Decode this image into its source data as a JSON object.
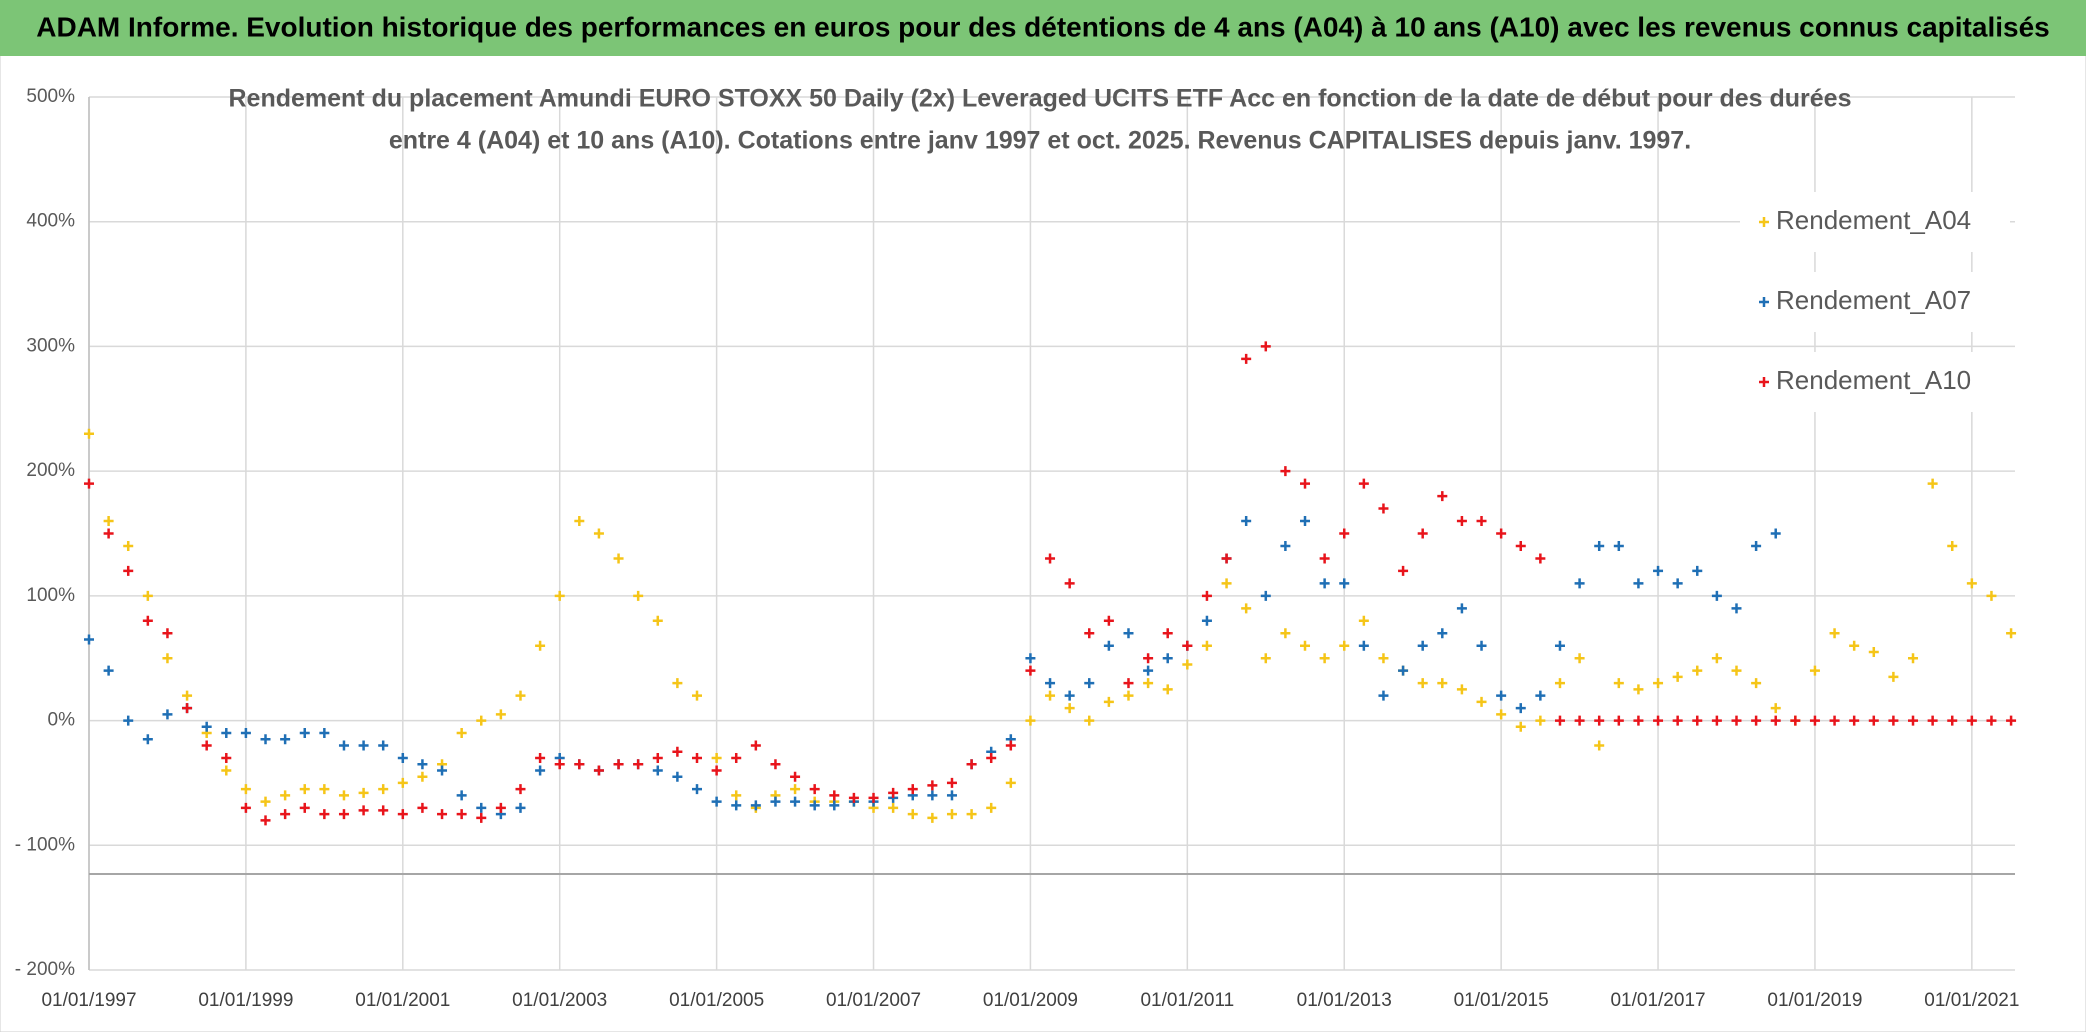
{
  "chart_data": {
    "type": "scatter",
    "title": "ADAM Informe. Evolution historique des performances en euros pour des détentions de 4 ans (A04) à 10 ans (A10) avec les revenus connus capitalisés",
    "subtitle": [
      "Rendement du placement Amundi EURO STOXX 50 Daily (2x) Leveraged UCITS ETF Acc en fonction de la date de début pour des durées",
      "entre 4 (A04) et 10 ans (A10). Cotations entre janv 1997 et oct. 2025. Revenus CAPITALISES depuis janv. 1997."
    ],
    "x": [
      1997,
      1997.25,
      1997.5,
      1997.75,
      1998,
      1998.25,
      1998.5,
      1998.75,
      1999,
      1999.25,
      1999.5,
      1999.75,
      2000,
      2000.25,
      2000.5,
      2000.75,
      2001,
      2001.25,
      2001.5,
      2001.75,
      2002,
      2002.25,
      2002.5,
      2002.75,
      2003,
      2003.25,
      2003.5,
      2003.75,
      2004,
      2004.25,
      2004.5,
      2004.75,
      2005,
      2005.25,
      2005.5,
      2005.75,
      2006,
      2006.25,
      2006.5,
      2006.75,
      2007,
      2007.25,
      2007.5,
      2007.75,
      2008,
      2008.25,
      2008.5,
      2008.75,
      2009,
      2009.25,
      2009.5,
      2009.75,
      2010,
      2010.25,
      2010.5,
      2010.75,
      2011,
      2011.25,
      2011.5,
      2011.75,
      2012,
      2012.25,
      2012.5,
      2012.75,
      2013,
      2013.25,
      2013.5,
      2013.75,
      2014,
      2014.25,
      2014.5,
      2014.75,
      2015,
      2015.25,
      2015.5,
      2015.75,
      2016,
      2016.25,
      2016.5,
      2016.75,
      2017,
      2017.25,
      2017.5,
      2017.75,
      2018,
      2018.25,
      2018.5,
      2018.75,
      2019,
      2019.25,
      2019.5,
      2019.75,
      2020,
      2020.25,
      2020.5,
      2020.75,
      2021,
      2021.25,
      2021.5
    ],
    "series": [
      {
        "name": "Rendement_A04",
        "color": "#f5c518",
        "values": [
          230,
          160,
          140,
          100,
          50,
          20,
          -10,
          -40,
          -55,
          -65,
          -60,
          -55,
          -55,
          -60,
          -58,
          -55,
          -50,
          -45,
          -35,
          -10,
          0,
          5,
          20,
          60,
          100,
          160,
          150,
          130,
          100,
          80,
          30,
          20,
          -30,
          -60,
          -70,
          -60,
          -55,
          -65,
          -65,
          -65,
          -70,
          -70,
          -75,
          -78,
          -75,
          -75,
          -70,
          -50,
          0,
          20,
          10,
          0,
          15,
          20,
          30,
          25,
          45,
          60,
          110,
          90,
          50,
          70,
          60,
          50,
          60,
          80,
          50,
          40,
          30,
          30,
          25,
          15,
          5,
          -5,
          0,
          30,
          50,
          -20,
          30,
          25,
          30,
          35,
          40,
          50,
          40,
          30,
          10,
          0,
          40,
          70,
          60,
          55,
          35,
          50,
          190,
          140,
          110,
          100,
          70
        ]
      },
      {
        "name": "Rendement_A07",
        "color": "#1f6fb5",
        "values": [
          65,
          40,
          0,
          -15,
          5,
          10,
          -5,
          -10,
          -10,
          -15,
          -15,
          -10,
          -10,
          -20,
          -20,
          -20,
          -30,
          -35,
          -40,
          -60,
          -70,
          -75,
          -70,
          -40,
          -30,
          -35,
          -40,
          -35,
          -35,
          -40,
          -45,
          -55,
          -65,
          -68,
          -68,
          -65,
          -65,
          -68,
          -68,
          -65,
          -65,
          -62,
          -60,
          -60,
          -60,
          -35,
          -25,
          -15,
          50,
          30,
          20,
          30,
          60,
          70,
          40,
          50,
          60,
          80,
          130,
          160,
          100,
          140,
          160,
          110,
          110,
          60,
          20,
          40,
          60,
          70,
          90,
          60,
          20,
          10,
          20,
          60,
          110,
          140,
          140,
          110,
          120,
          110,
          120,
          100,
          90,
          140,
          150,
          null,
          null,
          null,
          null,
          null,
          null,
          null,
          null,
          null,
          null,
          null,
          null
        ]
      },
      {
        "name": "Rendement_A10",
        "color": "#e8141b",
        "values": [
          190,
          150,
          120,
          80,
          70,
          10,
          -20,
          -30,
          -70,
          -80,
          -75,
          -70,
          -75,
          -75,
          -72,
          -72,
          -75,
          -70,
          -75,
          -75,
          -78,
          -70,
          -55,
          -30,
          -35,
          -35,
          -40,
          -35,
          -35,
          -30,
          -25,
          -30,
          -40,
          -30,
          -20,
          -35,
          -45,
          -55,
          -60,
          -62,
          -62,
          -58,
          -55,
          -52,
          -50,
          -35,
          -30,
          -20,
          40,
          130,
          110,
          70,
          80,
          30,
          50,
          70,
          60,
          100,
          130,
          290,
          300,
          200,
          190,
          130,
          150,
          190,
          170,
          120,
          150,
          180,
          160,
          160,
          150,
          140,
          130,
          0,
          0,
          0,
          0,
          0,
          0,
          0,
          0,
          0,
          0,
          0,
          0,
          0,
          0,
          0,
          0,
          0,
          0,
          0,
          0,
          0,
          0,
          0,
          0
        ]
      }
    ],
    "xlim": [
      1997,
      2021.55
    ],
    "xticks": [
      {
        "value": 1997,
        "label": "01/01/1997"
      },
      {
        "value": 1999,
        "label": "01/01/1999"
      },
      {
        "value": 2001,
        "label": "01/01/2001"
      },
      {
        "value": 2003,
        "label": "01/01/2003"
      },
      {
        "value": 2005,
        "label": "01/01/2005"
      },
      {
        "value": 2007,
        "label": "01/01/2007"
      },
      {
        "value": 2009,
        "label": "01/01/2009"
      },
      {
        "value": 2011,
        "label": "01/01/2011"
      },
      {
        "value": 2013,
        "label": "01/01/2013"
      },
      {
        "value": 2015,
        "label": "01/01/2015"
      },
      {
        "value": 2017,
        "label": "01/01/2017"
      },
      {
        "value": 2019,
        "label": "01/01/2019"
      },
      {
        "value": 2021,
        "label": "01/01/2021"
      }
    ],
    "ylim": [
      -200,
      500
    ],
    "yticks": [
      {
        "value": 500,
        "label": "500%"
      },
      {
        "value": 400,
        "label": "400%"
      },
      {
        "value": 300,
        "label": "300%"
      },
      {
        "value": 200,
        "label": "200%"
      },
      {
        "value": 100,
        "label": "100%"
      },
      {
        "value": 0,
        "label": "0%"
      },
      {
        "value": -100,
        "label": "- 100%"
      },
      {
        "value": -200,
        "label": "- 200%"
      }
    ],
    "grid": true,
    "legend": "right"
  }
}
